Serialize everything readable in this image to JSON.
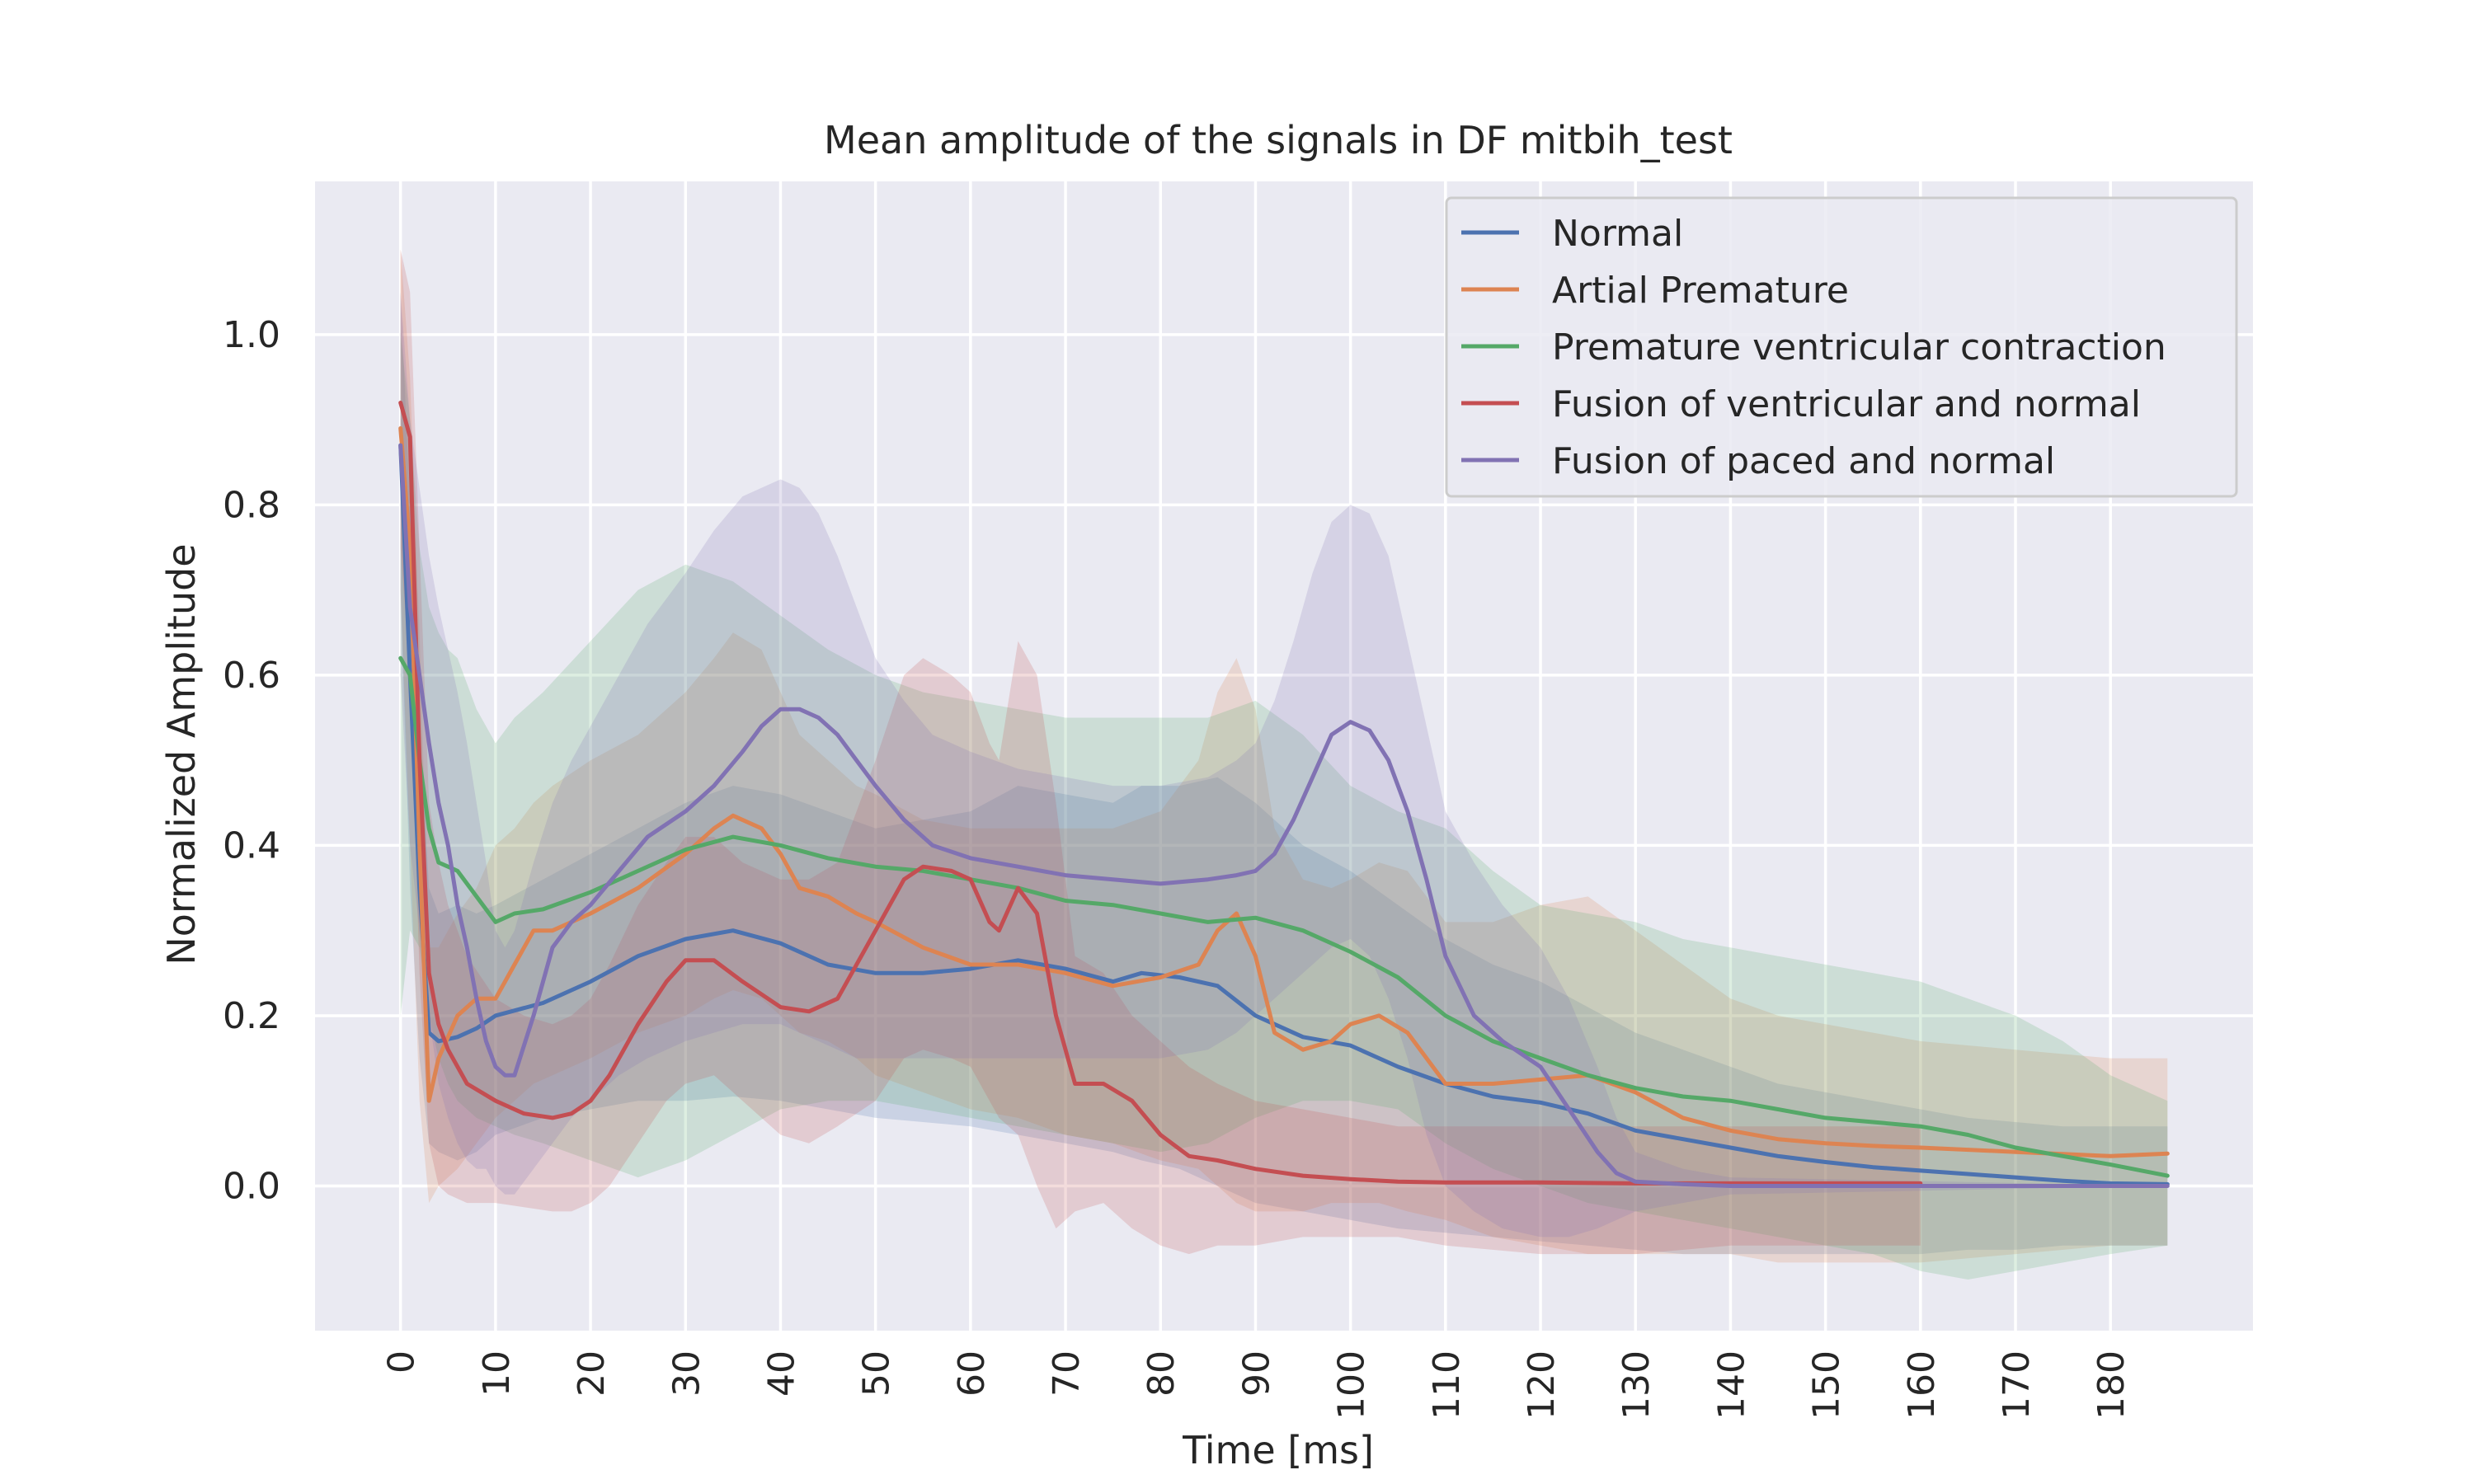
{
  "chart_data": {
    "type": "line",
    "title": "Mean amplitude of the signals in DF mitbih_test",
    "xlabel": "Time [ms]",
    "ylabel": "Normalized Amplitude",
    "xlim": [
      -9,
      195
    ],
    "ylim": [
      -0.17,
      1.18
    ],
    "xticks": [
      0,
      10,
      20,
      30,
      40,
      50,
      60,
      70,
      80,
      90,
      100,
      110,
      120,
      130,
      140,
      150,
      160,
      170,
      180
    ],
    "yticks": [
      0.0,
      0.2,
      0.4,
      0.6,
      0.8,
      1.0
    ],
    "grid": true,
    "legend_position": "top-right",
    "series": [
      {
        "name": "Normal",
        "color": "#4c72b0",
        "x": [
          0,
          1,
          2,
          3,
          4,
          6,
          8,
          10,
          15,
          20,
          25,
          30,
          35,
          40,
          45,
          50,
          55,
          60,
          65,
          70,
          75,
          78,
          82,
          86,
          90,
          95,
          100,
          105,
          110,
          115,
          120,
          125,
          130,
          135,
          140,
          145,
          150,
          155,
          160,
          165,
          170,
          175,
          180,
          186
        ],
        "mean": [
          0.87,
          0.6,
          0.35,
          0.18,
          0.17,
          0.175,
          0.185,
          0.2,
          0.215,
          0.24,
          0.27,
          0.29,
          0.3,
          0.285,
          0.26,
          0.25,
          0.25,
          0.255,
          0.265,
          0.255,
          0.24,
          0.25,
          0.245,
          0.235,
          0.2,
          0.175,
          0.165,
          0.14,
          0.12,
          0.105,
          0.098,
          0.085,
          0.065,
          0.055,
          0.045,
          0.035,
          0.028,
          0.022,
          0.018,
          0.014,
          0.01,
          0.006,
          0.003,
          0.002
        ],
        "lower": [
          0.7,
          0.35,
          0.15,
          0.05,
          0.04,
          0.03,
          0.04,
          0.06,
          0.08,
          0.09,
          0.1,
          0.1,
          0.105,
          0.1,
          0.09,
          0.08,
          0.075,
          0.07,
          0.06,
          0.05,
          0.04,
          0.03,
          0.02,
          0.0,
          -0.02,
          -0.03,
          -0.04,
          -0.05,
          -0.055,
          -0.06,
          -0.065,
          -0.07,
          -0.075,
          -0.08,
          -0.08,
          -0.08,
          -0.08,
          -0.08,
          -0.08,
          -0.075,
          -0.075,
          -0.07,
          -0.07,
          -0.07
        ],
        "upper": [
          1.05,
          0.8,
          0.55,
          0.35,
          0.32,
          0.33,
          0.32,
          0.33,
          0.36,
          0.39,
          0.42,
          0.45,
          0.47,
          0.46,
          0.44,
          0.42,
          0.43,
          0.44,
          0.47,
          0.46,
          0.45,
          0.47,
          0.47,
          0.48,
          0.45,
          0.4,
          0.37,
          0.33,
          0.29,
          0.26,
          0.24,
          0.21,
          0.18,
          0.16,
          0.14,
          0.12,
          0.11,
          0.1,
          0.09,
          0.08,
          0.075,
          0.07,
          0.07,
          0.07
        ]
      },
      {
        "name": "Artial Premature",
        "color": "#dd8452",
        "x": [
          0,
          1,
          2,
          3,
          4,
          6,
          8,
          10,
          12,
          14,
          16,
          20,
          25,
          30,
          33,
          35,
          38,
          40,
          42,
          45,
          48,
          50,
          55,
          60,
          65,
          70,
          75,
          80,
          84,
          86,
          88,
          90,
          92,
          95,
          98,
          100,
          103,
          106,
          110,
          115,
          120,
          125,
          130,
          135,
          140,
          145,
          150,
          155,
          160,
          170,
          180,
          186
        ],
        "mean": [
          0.89,
          0.75,
          0.4,
          0.1,
          0.15,
          0.2,
          0.22,
          0.22,
          0.26,
          0.3,
          0.3,
          0.32,
          0.35,
          0.39,
          0.42,
          0.435,
          0.42,
          0.39,
          0.35,
          0.34,
          0.32,
          0.31,
          0.28,
          0.26,
          0.26,
          0.25,
          0.235,
          0.245,
          0.26,
          0.3,
          0.32,
          0.27,
          0.18,
          0.16,
          0.17,
          0.19,
          0.2,
          0.18,
          0.12,
          0.12,
          0.125,
          0.13,
          0.11,
          0.08,
          0.065,
          0.055,
          0.05,
          0.047,
          0.045,
          0.04,
          0.035,
          0.038
        ],
        "lower": [
          0.7,
          0.4,
          0.1,
          -0.02,
          0.0,
          0.02,
          0.05,
          0.08,
          0.1,
          0.12,
          0.13,
          0.15,
          0.18,
          0.2,
          0.22,
          0.23,
          0.22,
          0.2,
          0.18,
          0.17,
          0.15,
          0.13,
          0.11,
          0.09,
          0.08,
          0.06,
          0.05,
          0.03,
          0.02,
          0.0,
          -0.02,
          -0.03,
          -0.03,
          -0.03,
          -0.02,
          -0.02,
          -0.02,
          -0.03,
          -0.04,
          -0.06,
          -0.07,
          -0.08,
          -0.08,
          -0.08,
          -0.08,
          -0.09,
          -0.09,
          -0.09,
          -0.09,
          -0.08,
          -0.07,
          -0.07
        ],
        "upper": [
          1.1,
          0.95,
          0.65,
          0.28,
          0.28,
          0.32,
          0.35,
          0.4,
          0.42,
          0.45,
          0.47,
          0.5,
          0.53,
          0.58,
          0.62,
          0.65,
          0.63,
          0.58,
          0.53,
          0.5,
          0.47,
          0.46,
          0.43,
          0.42,
          0.42,
          0.42,
          0.42,
          0.44,
          0.5,
          0.58,
          0.62,
          0.56,
          0.42,
          0.36,
          0.35,
          0.36,
          0.38,
          0.37,
          0.31,
          0.31,
          0.33,
          0.34,
          0.3,
          0.26,
          0.22,
          0.2,
          0.19,
          0.18,
          0.17,
          0.16,
          0.15,
          0.15
        ]
      },
      {
        "name": "Premature ventricular contraction",
        "color": "#55a868",
        "x": [
          0,
          1,
          2,
          3,
          4,
          5,
          6,
          8,
          10,
          12,
          15,
          20,
          25,
          30,
          35,
          40,
          45,
          50,
          55,
          60,
          65,
          70,
          75,
          80,
          85,
          90,
          95,
          100,
          105,
          110,
          115,
          120,
          125,
          130,
          135,
          140,
          145,
          150,
          155,
          160,
          165,
          170,
          175,
          180,
          186
        ],
        "mean": [
          0.62,
          0.6,
          0.5,
          0.42,
          0.38,
          0.375,
          0.37,
          0.34,
          0.31,
          0.32,
          0.325,
          0.345,
          0.37,
          0.395,
          0.41,
          0.4,
          0.385,
          0.375,
          0.37,
          0.36,
          0.35,
          0.335,
          0.33,
          0.32,
          0.31,
          0.315,
          0.3,
          0.275,
          0.245,
          0.2,
          0.17,
          0.15,
          0.13,
          0.115,
          0.105,
          0.1,
          0.09,
          0.08,
          0.075,
          0.07,
          0.06,
          0.045,
          0.035,
          0.025,
          0.012
        ],
        "lower": [
          0.2,
          0.3,
          0.28,
          0.2,
          0.15,
          0.12,
          0.1,
          0.08,
          0.07,
          0.06,
          0.05,
          0.03,
          0.01,
          0.03,
          0.06,
          0.09,
          0.1,
          0.1,
          0.09,
          0.08,
          0.07,
          0.06,
          0.05,
          0.04,
          0.05,
          0.08,
          0.1,
          0.1,
          0.09,
          0.05,
          0.02,
          0.0,
          -0.02,
          -0.03,
          -0.04,
          -0.05,
          -0.06,
          -0.07,
          -0.08,
          -0.1,
          -0.11,
          -0.1,
          -0.09,
          -0.08,
          -0.07
        ],
        "upper": [
          1.0,
          0.9,
          0.75,
          0.68,
          0.65,
          0.63,
          0.62,
          0.56,
          0.52,
          0.55,
          0.58,
          0.64,
          0.7,
          0.73,
          0.71,
          0.67,
          0.63,
          0.6,
          0.58,
          0.57,
          0.56,
          0.55,
          0.55,
          0.55,
          0.55,
          0.57,
          0.53,
          0.47,
          0.44,
          0.42,
          0.37,
          0.33,
          0.32,
          0.31,
          0.29,
          0.28,
          0.27,
          0.26,
          0.25,
          0.24,
          0.22,
          0.2,
          0.17,
          0.13,
          0.1
        ]
      },
      {
        "name": "Fusion of ventricular and normal",
        "color": "#c44e52",
        "x": [
          0,
          1,
          2,
          3,
          4,
          5,
          7,
          10,
          13,
          16,
          18,
          20,
          22,
          25,
          28,
          30,
          33,
          36,
          40,
          43,
          46,
          50,
          53,
          55,
          58,
          60,
          62,
          63,
          65,
          67,
          69,
          71,
          74,
          77,
          80,
          83,
          86,
          90,
          95,
          100,
          105,
          110,
          120,
          130,
          140,
          150,
          160
        ],
        "mean": [
          0.92,
          0.88,
          0.5,
          0.25,
          0.19,
          0.16,
          0.12,
          0.1,
          0.085,
          0.08,
          0.085,
          0.1,
          0.13,
          0.19,
          0.24,
          0.265,
          0.265,
          0.24,
          0.21,
          0.205,
          0.22,
          0.3,
          0.36,
          0.375,
          0.37,
          0.36,
          0.31,
          0.3,
          0.35,
          0.32,
          0.2,
          0.12,
          0.12,
          0.1,
          0.06,
          0.035,
          0.03,
          0.02,
          0.012,
          0.008,
          0.005,
          0.004,
          0.004,
          0.003,
          0.003,
          0.003,
          0.003
        ],
        "lower": [
          0.75,
          0.6,
          0.25,
          0.05,
          0.0,
          -0.01,
          -0.02,
          -0.02,
          -0.025,
          -0.03,
          -0.03,
          -0.02,
          0.0,
          0.05,
          0.1,
          0.12,
          0.13,
          0.1,
          0.06,
          0.05,
          0.07,
          0.1,
          0.15,
          0.16,
          0.15,
          0.14,
          0.1,
          0.08,
          0.06,
          0.0,
          -0.05,
          -0.03,
          -0.02,
          -0.05,
          -0.07,
          -0.08,
          -0.07,
          -0.07,
          -0.06,
          -0.06,
          -0.06,
          -0.07,
          -0.08,
          -0.08,
          -0.07,
          -0.07,
          -0.07
        ],
        "upper": [
          1.1,
          1.05,
          0.75,
          0.45,
          0.38,
          0.33,
          0.27,
          0.22,
          0.2,
          0.19,
          0.2,
          0.22,
          0.26,
          0.33,
          0.38,
          0.41,
          0.41,
          0.38,
          0.36,
          0.36,
          0.38,
          0.5,
          0.6,
          0.62,
          0.6,
          0.58,
          0.52,
          0.5,
          0.64,
          0.6,
          0.45,
          0.27,
          0.25,
          0.2,
          0.17,
          0.14,
          0.12,
          0.1,
          0.09,
          0.08,
          0.07,
          0.07,
          0.07,
          0.07,
          0.07,
          0.07,
          0.07
        ]
      },
      {
        "name": "Fusion of paced and normal",
        "color": "#8172b3",
        "x": [
          0,
          1,
          2,
          3,
          4,
          5,
          6,
          7,
          8,
          9,
          10,
          11,
          12,
          14,
          16,
          18,
          20,
          23,
          26,
          30,
          33,
          36,
          38,
          40,
          42,
          44,
          46,
          48,
          50,
          53,
          56,
          60,
          65,
          70,
          75,
          80,
          85,
          88,
          90,
          92,
          94,
          96,
          98,
          100,
          102,
          104,
          106,
          108,
          110,
          113,
          116,
          120,
          123,
          126,
          128,
          130,
          135,
          140,
          186
        ],
        "mean": [
          0.87,
          0.68,
          0.6,
          0.52,
          0.45,
          0.4,
          0.33,
          0.28,
          0.22,
          0.17,
          0.14,
          0.13,
          0.13,
          0.2,
          0.28,
          0.31,
          0.33,
          0.37,
          0.41,
          0.44,
          0.47,
          0.51,
          0.54,
          0.56,
          0.56,
          0.55,
          0.53,
          0.5,
          0.47,
          0.43,
          0.4,
          0.385,
          0.375,
          0.365,
          0.36,
          0.355,
          0.36,
          0.365,
          0.37,
          0.39,
          0.43,
          0.48,
          0.53,
          0.545,
          0.535,
          0.5,
          0.44,
          0.36,
          0.27,
          0.2,
          0.17,
          0.14,
          0.09,
          0.04,
          0.015,
          0.005,
          0.002,
          0.0,
          0.0
        ],
        "lower": [
          0.6,
          0.4,
          0.3,
          0.2,
          0.12,
          0.08,
          0.05,
          0.03,
          0.02,
          0.02,
          0.0,
          -0.01,
          -0.01,
          0.02,
          0.05,
          0.08,
          0.1,
          0.13,
          0.15,
          0.17,
          0.18,
          0.19,
          0.19,
          0.19,
          0.18,
          0.17,
          0.16,
          0.15,
          0.15,
          0.15,
          0.15,
          0.15,
          0.15,
          0.15,
          0.15,
          0.15,
          0.16,
          0.18,
          0.2,
          0.22,
          0.24,
          0.26,
          0.28,
          0.29,
          0.27,
          0.22,
          0.15,
          0.06,
          0.0,
          -0.03,
          -0.05,
          -0.06,
          -0.06,
          -0.05,
          -0.04,
          -0.03,
          -0.02,
          -0.01,
          0.0
        ],
        "upper": [
          1.05,
          0.9,
          0.82,
          0.74,
          0.68,
          0.63,
          0.58,
          0.52,
          0.45,
          0.38,
          0.3,
          0.28,
          0.3,
          0.38,
          0.45,
          0.5,
          0.54,
          0.6,
          0.66,
          0.72,
          0.77,
          0.81,
          0.82,
          0.83,
          0.82,
          0.79,
          0.74,
          0.68,
          0.62,
          0.57,
          0.53,
          0.51,
          0.49,
          0.48,
          0.47,
          0.47,
          0.48,
          0.5,
          0.52,
          0.57,
          0.64,
          0.72,
          0.78,
          0.8,
          0.79,
          0.74,
          0.64,
          0.54,
          0.44,
          0.38,
          0.33,
          0.28,
          0.22,
          0.14,
          0.08,
          0.04,
          0.02,
          0.01,
          0.0
        ]
      }
    ]
  }
}
